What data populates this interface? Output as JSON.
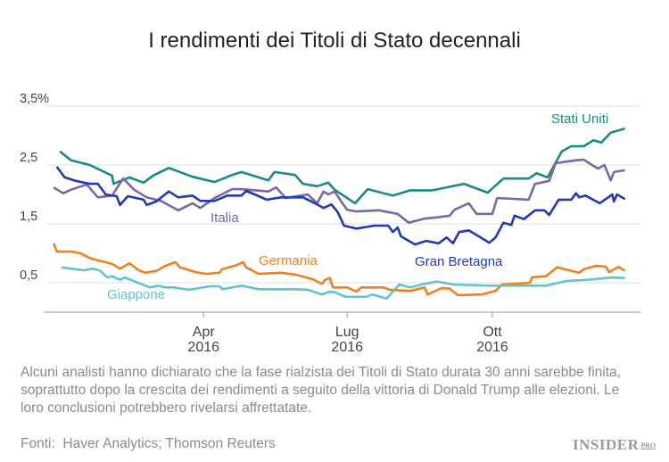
{
  "title": "I rendimenti dei Titoli di Stato decennali",
  "note": "Alcuni analisti hanno dichiarato che la fase rialzista dei Titoli di Stato durata 30 anni sarebbe finita, soprattutto dopo la crescita dei rendimenti a seguito della vittoria di Donald Trump alle elezioni. Le loro conclusioni potrebbero rivelarsi affrettatate.",
  "source": "Fonti:  Haver Analytics; Thomson Reuters",
  "logo": {
    "text": "INSIDER",
    "sup": "PRO"
  },
  "chart_data": {
    "type": "line",
    "title": "I rendimenti dei Titoli di Stato decennali",
    "xlabel": "",
    "ylabel": "",
    "xlim": [
      "2015-12-20",
      "2016-12-31"
    ],
    "ylim": [
      0,
      3.5
    ],
    "yticks": [
      {
        "v": 3.5,
        "label": "3,5%"
      },
      {
        "v": 2.5,
        "label": "2,5"
      },
      {
        "v": 1.5,
        "label": "1,5"
      },
      {
        "v": 0.5,
        "label": "0,5"
      }
    ],
    "xticks": [
      {
        "date": "2016-04-01",
        "label": "Apr",
        "sub": "2016"
      },
      {
        "date": "2016-07-01",
        "label": "Lug",
        "sub": "2016"
      },
      {
        "date": "2016-10-01",
        "label": "Ott",
        "sub": "2016"
      }
    ],
    "grid": true,
    "legend": "inline labels",
    "series": [
      {
        "name": "Stati Uniti",
        "color": "#1a8a84",
        "points": [
          [
            "2016-01-01",
            2.73
          ],
          [
            "2016-01-08",
            2.58
          ],
          [
            "2016-01-20",
            2.5
          ],
          [
            "2016-02-03",
            2.32
          ],
          [
            "2016-02-04",
            2.18
          ],
          [
            "2016-02-14",
            2.29
          ],
          [
            "2016-02-23",
            2.2
          ],
          [
            "2016-02-29",
            2.32
          ],
          [
            "2016-03-10",
            2.45
          ],
          [
            "2016-03-25",
            2.3
          ],
          [
            "2016-04-08",
            2.21
          ],
          [
            "2016-04-19",
            2.33
          ],
          [
            "2016-04-25",
            2.38
          ],
          [
            "2016-05-12",
            2.24
          ],
          [
            "2016-05-16",
            2.38
          ],
          [
            "2016-05-29",
            2.33
          ],
          [
            "2016-06-03",
            2.18
          ],
          [
            "2016-06-12",
            2.14
          ],
          [
            "2016-06-19",
            2.2
          ],
          [
            "2016-06-23",
            2.08
          ],
          [
            "2016-07-06",
            1.85
          ],
          [
            "2016-07-14",
            2.09
          ],
          [
            "2016-07-30",
            1.98
          ],
          [
            "2016-08-10",
            2.07
          ],
          [
            "2016-08-24",
            2.07
          ],
          [
            "2016-09-13",
            2.18
          ],
          [
            "2016-09-28",
            2.03
          ],
          [
            "2016-10-08",
            2.27
          ],
          [
            "2016-10-24",
            2.27
          ],
          [
            "2016-10-29",
            2.36
          ],
          [
            "2016-11-05",
            2.29
          ],
          [
            "2016-11-14",
            2.73
          ],
          [
            "2016-11-20",
            2.82
          ],
          [
            "2016-11-28",
            2.82
          ],
          [
            "2016-12-04",
            2.92
          ],
          [
            "2016-12-09",
            2.88
          ],
          [
            "2016-12-15",
            3.05
          ],
          [
            "2016-12-24",
            3.12
          ]
        ]
      },
      {
        "name": "Italia",
        "color": "#7a68a6",
        "points": [
          [
            "2015-12-28",
            2.12
          ],
          [
            "2016-01-03",
            2.02
          ],
          [
            "2016-01-08",
            2.08
          ],
          [
            "2016-01-18",
            2.17
          ],
          [
            "2016-01-25",
            1.95
          ],
          [
            "2016-02-03",
            1.98
          ],
          [
            "2016-02-10",
            2.27
          ],
          [
            "2016-02-17",
            2.08
          ],
          [
            "2016-02-25",
            1.95
          ],
          [
            "2016-03-05",
            1.89
          ],
          [
            "2016-03-16",
            1.73
          ],
          [
            "2016-03-25",
            1.85
          ],
          [
            "2016-03-30",
            1.77
          ],
          [
            "2016-04-08",
            1.94
          ],
          [
            "2016-04-19",
            2.09
          ],
          [
            "2016-04-25",
            2.09
          ],
          [
            "2016-05-12",
            2.05
          ],
          [
            "2016-05-17",
            2.12
          ],
          [
            "2016-05-23",
            1.94
          ],
          [
            "2016-06-06",
            2.0
          ],
          [
            "2016-06-12",
            1.85
          ],
          [
            "2016-06-16",
            2.05
          ],
          [
            "2016-06-19",
            2.0
          ],
          [
            "2016-06-23",
            2.05
          ],
          [
            "2016-06-28",
            1.85
          ],
          [
            "2016-07-01",
            1.74
          ],
          [
            "2016-07-07",
            1.71
          ],
          [
            "2016-07-21",
            1.73
          ],
          [
            "2016-08-02",
            1.67
          ],
          [
            "2016-08-09",
            1.52
          ],
          [
            "2016-08-19",
            1.59
          ],
          [
            "2016-08-27",
            1.61
          ],
          [
            "2016-09-04",
            1.64
          ],
          [
            "2016-09-07",
            1.74
          ],
          [
            "2016-09-16",
            1.85
          ],
          [
            "2016-09-21",
            1.67
          ],
          [
            "2016-10-01",
            1.67
          ],
          [
            "2016-10-04",
            1.94
          ],
          [
            "2016-10-24",
            1.91
          ],
          [
            "2016-10-28",
            2.18
          ],
          [
            "2016-11-06",
            2.23
          ],
          [
            "2016-11-10",
            2.53
          ],
          [
            "2016-11-23",
            2.58
          ],
          [
            "2016-11-28",
            2.59
          ],
          [
            "2016-12-02",
            2.52
          ],
          [
            "2016-12-07",
            2.44
          ],
          [
            "2016-12-11",
            2.5
          ],
          [
            "2016-12-15",
            2.24
          ],
          [
            "2016-12-17",
            2.38
          ],
          [
            "2016-12-24",
            2.41
          ]
        ]
      },
      {
        "name": "Gran Bretagna",
        "color": "#2239b5",
        "points": [
          [
            "2015-12-30",
            2.47
          ],
          [
            "2016-01-04",
            2.29
          ],
          [
            "2016-01-11",
            2.23
          ],
          [
            "2016-01-20",
            2.18
          ],
          [
            "2016-01-25",
            2.18
          ],
          [
            "2016-01-30",
            2.0
          ],
          [
            "2016-02-06",
            1.97
          ],
          [
            "2016-02-08",
            1.82
          ],
          [
            "2016-02-13",
            1.97
          ],
          [
            "2016-02-23",
            1.91
          ],
          [
            "2016-02-25",
            1.82
          ],
          [
            "2016-03-02",
            1.88
          ],
          [
            "2016-03-10",
            2.05
          ],
          [
            "2016-03-16",
            1.95
          ],
          [
            "2016-03-25",
            1.98
          ],
          [
            "2016-03-30",
            1.89
          ],
          [
            "2016-04-08",
            1.89
          ],
          [
            "2016-04-16",
            1.98
          ],
          [
            "2016-04-25",
            1.98
          ],
          [
            "2016-04-28",
            2.06
          ],
          [
            "2016-05-06",
            1.97
          ],
          [
            "2016-05-11",
            1.91
          ],
          [
            "2016-05-20",
            1.95
          ],
          [
            "2016-06-03",
            1.95
          ],
          [
            "2016-06-12",
            1.83
          ],
          [
            "2016-06-16",
            1.77
          ],
          [
            "2016-06-21",
            1.83
          ],
          [
            "2016-06-25",
            1.7
          ],
          [
            "2016-06-29",
            1.47
          ],
          [
            "2016-07-07",
            1.42
          ],
          [
            "2016-07-18",
            1.47
          ],
          [
            "2016-07-27",
            1.47
          ],
          [
            "2016-07-30",
            1.36
          ],
          [
            "2016-08-02",
            1.44
          ],
          [
            "2016-08-04",
            1.29
          ],
          [
            "2016-08-13",
            1.15
          ],
          [
            "2016-08-20",
            1.21
          ],
          [
            "2016-08-28",
            1.17
          ],
          [
            "2016-09-02",
            1.27
          ],
          [
            "2016-09-06",
            1.17
          ],
          [
            "2016-09-10",
            1.36
          ],
          [
            "2016-09-16",
            1.39
          ],
          [
            "2016-09-29",
            1.18
          ],
          [
            "2016-10-03",
            1.27
          ],
          [
            "2016-10-08",
            1.52
          ],
          [
            "2016-10-13",
            1.48
          ],
          [
            "2016-10-15",
            1.64
          ],
          [
            "2016-10-21",
            1.58
          ],
          [
            "2016-10-28",
            1.73
          ],
          [
            "2016-11-03",
            1.73
          ],
          [
            "2016-11-06",
            1.65
          ],
          [
            "2016-11-12",
            1.91
          ],
          [
            "2016-11-20",
            1.91
          ],
          [
            "2016-11-23",
            2.02
          ],
          [
            "2016-11-25",
            1.95
          ],
          [
            "2016-11-29",
            1.98
          ],
          [
            "2016-12-08",
            1.85
          ],
          [
            "2016-12-16",
            2.0
          ],
          [
            "2016-12-17",
            1.88
          ],
          [
            "2016-12-19",
            2.0
          ],
          [
            "2016-12-24",
            1.92
          ]
        ]
      },
      {
        "name": "Germania",
        "color": "#ee8020",
        "points": [
          [
            "2015-12-28",
            1.17
          ],
          [
            "2015-12-30",
            1.03
          ],
          [
            "2016-01-08",
            1.03
          ],
          [
            "2016-01-14",
            1.0
          ],
          [
            "2016-01-20",
            0.92
          ],
          [
            "2016-01-25",
            0.88
          ],
          [
            "2016-02-03",
            0.82
          ],
          [
            "2016-02-08",
            0.74
          ],
          [
            "2016-02-14",
            0.83
          ],
          [
            "2016-02-20",
            0.71
          ],
          [
            "2016-02-24",
            0.67
          ],
          [
            "2016-03-02",
            0.7
          ],
          [
            "2016-03-08",
            0.79
          ],
          [
            "2016-03-14",
            0.85
          ],
          [
            "2016-03-17",
            0.76
          ],
          [
            "2016-03-27",
            0.68
          ],
          [
            "2016-04-03",
            0.65
          ],
          [
            "2016-04-11",
            0.67
          ],
          [
            "2016-04-13",
            0.73
          ],
          [
            "2016-04-22",
            0.8
          ],
          [
            "2016-04-26",
            0.85
          ],
          [
            "2016-04-28",
            0.76
          ],
          [
            "2016-05-06",
            0.65
          ],
          [
            "2016-05-20",
            0.67
          ],
          [
            "2016-05-29",
            0.64
          ],
          [
            "2016-06-09",
            0.56
          ],
          [
            "2016-06-15",
            0.48
          ],
          [
            "2016-06-17",
            0.55
          ],
          [
            "2016-06-20",
            0.58
          ],
          [
            "2016-06-22",
            0.42
          ],
          [
            "2016-07-01",
            0.42
          ],
          [
            "2016-07-07",
            0.35
          ],
          [
            "2016-07-10",
            0.42
          ],
          [
            "2016-07-24",
            0.42
          ],
          [
            "2016-07-28",
            0.38
          ],
          [
            "2016-08-10",
            0.36
          ],
          [
            "2016-08-19",
            0.42
          ],
          [
            "2016-08-21",
            0.3
          ],
          [
            "2016-08-30",
            0.41
          ],
          [
            "2016-09-04",
            0.4
          ],
          [
            "2016-09-09",
            0.29
          ],
          [
            "2016-09-24",
            0.3
          ],
          [
            "2016-10-03",
            0.36
          ],
          [
            "2016-10-07",
            0.47
          ],
          [
            "2016-10-25",
            0.5
          ],
          [
            "2016-10-26",
            0.59
          ],
          [
            "2016-11-04",
            0.61
          ],
          [
            "2016-11-11",
            0.76
          ],
          [
            "2016-11-25",
            0.67
          ],
          [
            "2016-11-28",
            0.73
          ],
          [
            "2016-12-06",
            0.79
          ],
          [
            "2016-12-12",
            0.77
          ],
          [
            "2016-12-14",
            0.68
          ],
          [
            "2016-12-20",
            0.77
          ],
          [
            "2016-12-24",
            0.7
          ]
        ]
      },
      {
        "name": "Giappone",
        "color": "#62c4cb",
        "points": [
          [
            "2016-01-02",
            0.76
          ],
          [
            "2016-01-16",
            0.71
          ],
          [
            "2016-01-22",
            0.74
          ],
          [
            "2016-01-26",
            0.71
          ],
          [
            "2016-01-31",
            0.59
          ],
          [
            "2016-02-03",
            0.61
          ],
          [
            "2016-02-08",
            0.55
          ],
          [
            "2016-02-11",
            0.59
          ],
          [
            "2016-02-27",
            0.42
          ],
          [
            "2016-03-03",
            0.45
          ],
          [
            "2016-03-08",
            0.42
          ],
          [
            "2016-03-13",
            0.42
          ],
          [
            "2016-03-23",
            0.38
          ],
          [
            "2016-04-05",
            0.44
          ],
          [
            "2016-04-11",
            0.44
          ],
          [
            "2016-04-13",
            0.39
          ],
          [
            "2016-04-25",
            0.45
          ],
          [
            "2016-05-06",
            0.39
          ],
          [
            "2016-05-29",
            0.39
          ],
          [
            "2016-06-06",
            0.38
          ],
          [
            "2016-06-15",
            0.3
          ],
          [
            "2016-06-20",
            0.35
          ],
          [
            "2016-06-23",
            0.34
          ],
          [
            "2016-06-30",
            0.26
          ],
          [
            "2016-07-13",
            0.26
          ],
          [
            "2016-07-17",
            0.3
          ],
          [
            "2016-07-26",
            0.23
          ],
          [
            "2016-08-03",
            0.47
          ],
          [
            "2016-08-10",
            0.42
          ],
          [
            "2016-08-19",
            0.48
          ],
          [
            "2016-08-27",
            0.52
          ],
          [
            "2016-09-06",
            0.47
          ],
          [
            "2016-09-30",
            0.45
          ],
          [
            "2016-11-04",
            0.45
          ],
          [
            "2016-11-17",
            0.53
          ],
          [
            "2016-12-01",
            0.55
          ],
          [
            "2016-12-16",
            0.59
          ],
          [
            "2016-12-24",
            0.58
          ]
        ]
      }
    ]
  }
}
